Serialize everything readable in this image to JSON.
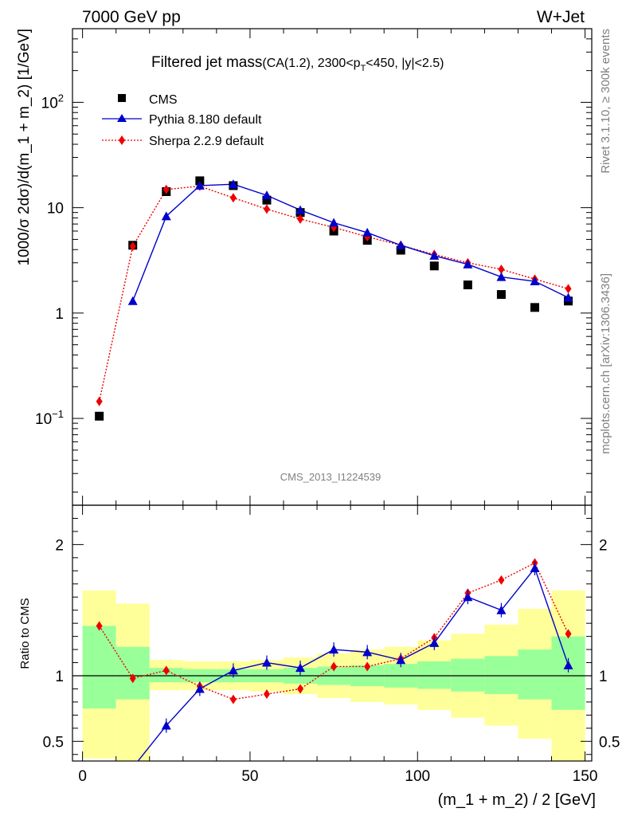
{
  "header": {
    "left": "7000 GeV pp",
    "right": "W+Jet"
  },
  "side_labels": {
    "rivet": "Rivet 3.1.10, ≥ 300k events",
    "source": "mcplots.cern.ch [arXiv:1306.3436]"
  },
  "watermark": "CMS_2013_I1224539",
  "title": {
    "main": "Filtered jet mass",
    "cuts_pre": "(CA(1.2), 2300<p",
    "cuts_sub": "T",
    "cuts_post": "<450, |y|<2.5)"
  },
  "legend": [
    {
      "label": "CMS",
      "color": "#000000",
      "marker": "square"
    },
    {
      "label": "Pythia 8.180 default",
      "color": "#0000cc",
      "marker": "triangle"
    },
    {
      "label": "Sherpa 2.2.9 default",
      "color": "#ee0000",
      "marker": "diamond"
    }
  ],
  "chart_data": [
    {
      "type": "line",
      "panel": "main",
      "ylabel": "1000/σ 2dσ)/d(m_1 + m_2) [1/GeV]",
      "yscale": "log",
      "ylim": [
        0.015,
        500
      ],
      "xlim": [
        -3,
        152
      ],
      "ytick_labels": [
        {
          "base": "10",
          "exp": "−1",
          "value": 0.1
        },
        {
          "base": "1",
          "exp": "",
          "value": 1
        },
        {
          "base": "10",
          "exp": "",
          "value": 10
        },
        {
          "base": "10",
          "exp": "2",
          "value": 100
        }
      ],
      "x": [
        5,
        15,
        25,
        35,
        45,
        55,
        65,
        75,
        85,
        95,
        105,
        115,
        125,
        135,
        145
      ],
      "series": [
        {
          "name": "CMS",
          "values": [
            0.105,
            4.4,
            14.2,
            18.0,
            16.2,
            11.8,
            9.0,
            6.0,
            4.9,
            3.95,
            2.8,
            1.85,
            1.5,
            1.13,
            1.3
          ]
        },
        {
          "name": "Pythia 8.180 default",
          "values": [
            null,
            1.3,
            8.3,
            16.2,
            16.7,
            13.1,
            9.5,
            7.2,
            5.8,
            4.4,
            3.5,
            2.9,
            2.2,
            2.0,
            1.4
          ]
        },
        {
          "name": "Sherpa 2.2.9 default",
          "values": [
            0.145,
            4.3,
            14.9,
            16.0,
            12.4,
            9.7,
            7.8,
            6.5,
            5.3,
            4.4,
            3.6,
            3.0,
            2.6,
            2.1,
            1.7
          ]
        }
      ]
    },
    {
      "type": "line",
      "panel": "ratio",
      "ylabel": "Ratio to CMS",
      "xlabel": "(m_1 + m_2) / 2 [GeV]",
      "ylim": [
        0.35,
        2.3
      ],
      "xlim": [
        -3,
        152
      ],
      "xticks": [
        0,
        50,
        100,
        150
      ],
      "yticks": [
        0.5,
        1,
        2
      ],
      "ytick_labels": [
        "0.5",
        "1",
        "2"
      ],
      "reference_line": 1,
      "bins": [
        [
          0,
          10
        ],
        [
          10,
          20
        ],
        [
          20,
          30
        ],
        [
          30,
          40
        ],
        [
          40,
          50
        ],
        [
          50,
          60
        ],
        [
          60,
          70
        ],
        [
          70,
          80
        ],
        [
          80,
          90
        ],
        [
          90,
          100
        ],
        [
          100,
          110
        ],
        [
          110,
          120
        ],
        [
          120,
          130
        ],
        [
          130,
          140
        ],
        [
          140,
          150
        ]
      ],
      "band_inner": [
        [
          0.75,
          1.38
        ],
        [
          0.82,
          1.22
        ],
        [
          0.95,
          1.06
        ],
        [
          0.95,
          1.05
        ],
        [
          0.95,
          1.05
        ],
        [
          0.95,
          1.05
        ],
        [
          0.94,
          1.06
        ],
        [
          0.93,
          1.07
        ],
        [
          0.92,
          1.08
        ],
        [
          0.91,
          1.09
        ],
        [
          0.9,
          1.11
        ],
        [
          0.88,
          1.13
        ],
        [
          0.86,
          1.15
        ],
        [
          0.82,
          1.2
        ],
        [
          0.74,
          1.3
        ]
      ],
      "band_outer": [
        [
          0.37,
          1.65
        ],
        [
          0.35,
          1.55
        ],
        [
          0.89,
          1.12
        ],
        [
          0.89,
          1.11
        ],
        [
          0.89,
          1.11
        ],
        [
          0.88,
          1.12
        ],
        [
          0.86,
          1.14
        ],
        [
          0.83,
          1.17
        ],
        [
          0.8,
          1.2
        ],
        [
          0.78,
          1.22
        ],
        [
          0.74,
          1.27
        ],
        [
          0.68,
          1.32
        ],
        [
          0.62,
          1.39
        ],
        [
          0.52,
          1.51
        ],
        [
          0.35,
          1.65
        ]
      ],
      "series": [
        {
          "name": "Pythia 8.180 default",
          "values": [
            null,
            0.3,
            0.62,
            0.9,
            1.04,
            1.1,
            1.06,
            1.2,
            1.18,
            1.12,
            1.25,
            1.6,
            1.5,
            1.82,
            1.08
          ]
        },
        {
          "name": "Sherpa 2.2.9 default",
          "values": [
            1.38,
            0.98,
            1.04,
            0.92,
            0.82,
            0.86,
            0.9,
            1.07,
            1.07,
            1.13,
            1.29,
            1.63,
            1.73,
            1.86,
            1.32
          ]
        }
      ]
    }
  ]
}
